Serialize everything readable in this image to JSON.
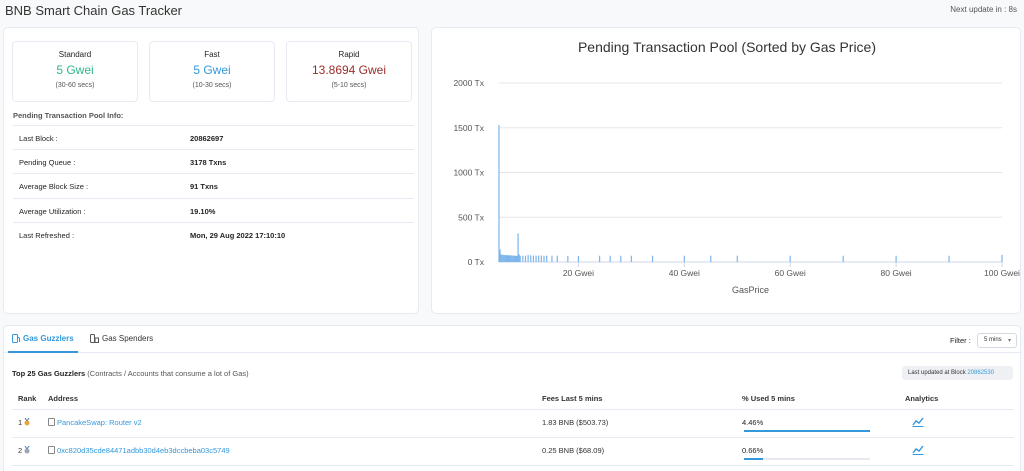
{
  "header": {
    "title": "BNB Smart Chain Gas Tracker",
    "next_update": "Next update in : 8s"
  },
  "gas": [
    {
      "label": "Standard",
      "value": "5 Gwei",
      "time": "(30-60 secs)"
    },
    {
      "label": "Fast",
      "value": "5 Gwei",
      "time": "(10-30 secs)"
    },
    {
      "label": "Rapid",
      "value": "13.8694 Gwei",
      "time": "(5-10 secs)"
    }
  ],
  "pool_info": {
    "heading": "Pending Transaction Pool Info:",
    "rows": [
      {
        "key": "Last Block :",
        "value": "20862697"
      },
      {
        "key": "Pending Queue :",
        "value": "3178 Txns"
      },
      {
        "key": "Average Block Size :",
        "value": "91 Txns"
      },
      {
        "key": "Average Utilization :",
        "value": "19.10%"
      },
      {
        "key": "Last Refreshed :",
        "value": "Mon, 29 Aug 2022 17:10:10"
      }
    ]
  },
  "chart_data": {
    "type": "bar",
    "title": "Pending Transaction Pool (Sorted by Gas Price)",
    "xlabel": "GasPrice",
    "ylabel": "",
    "xlim": [
      5,
      100
    ],
    "ylim": [
      0,
      2000
    ],
    "x_ticks": [
      "20 Gwei",
      "40 Gwei",
      "60 Gwei",
      "80 Gwei",
      "100 Gwei"
    ],
    "x_tick_values": [
      20,
      40,
      60,
      80,
      100
    ],
    "y_ticks": [
      "0 Tx",
      "500 Tx",
      "1000 Tx",
      "1500 Tx",
      "2000 Tx"
    ],
    "y_tick_values": [
      0,
      500,
      1000,
      1500,
      2000
    ],
    "grid": "horizontal",
    "color": "#7cb5ec",
    "points": [
      {
        "x": 5,
        "y": 1530
      },
      {
        "x": 5.2,
        "y": 140
      },
      {
        "x": 5.4,
        "y": 85
      },
      {
        "x": 5.6,
        "y": 80
      },
      {
        "x": 5.8,
        "y": 80
      },
      {
        "x": 6,
        "y": 78
      },
      {
        "x": 6.2,
        "y": 78
      },
      {
        "x": 6.4,
        "y": 76
      },
      {
        "x": 6.6,
        "y": 76
      },
      {
        "x": 6.8,
        "y": 75
      },
      {
        "x": 7,
        "y": 75
      },
      {
        "x": 7.2,
        "y": 74
      },
      {
        "x": 7.4,
        "y": 74
      },
      {
        "x": 7.6,
        "y": 72
      },
      {
        "x": 7.8,
        "y": 72
      },
      {
        "x": 8,
        "y": 70
      },
      {
        "x": 8.2,
        "y": 70
      },
      {
        "x": 8.4,
        "y": 68
      },
      {
        "x": 8.6,
        "y": 320
      },
      {
        "x": 8.8,
        "y": 85
      },
      {
        "x": 9,
        "y": 70
      },
      {
        "x": 9.5,
        "y": 70
      },
      {
        "x": 10,
        "y": 70
      },
      {
        "x": 10.5,
        "y": 80
      },
      {
        "x": 11,
        "y": 75
      },
      {
        "x": 11.5,
        "y": 70
      },
      {
        "x": 12,
        "y": 70
      },
      {
        "x": 12.5,
        "y": 72
      },
      {
        "x": 13,
        "y": 72
      },
      {
        "x": 13.5,
        "y": 70
      },
      {
        "x": 14,
        "y": 70
      },
      {
        "x": 15,
        "y": 70
      },
      {
        "x": 16,
        "y": 70
      },
      {
        "x": 18,
        "y": 68
      },
      {
        "x": 20,
        "y": 68
      },
      {
        "x": 24,
        "y": 70
      },
      {
        "x": 26,
        "y": 70
      },
      {
        "x": 28,
        "y": 70
      },
      {
        "x": 30,
        "y": 70
      },
      {
        "x": 34,
        "y": 70
      },
      {
        "x": 40,
        "y": 70
      },
      {
        "x": 45,
        "y": 70
      },
      {
        "x": 50,
        "y": 70
      },
      {
        "x": 60,
        "y": 70
      },
      {
        "x": 70,
        "y": 70
      },
      {
        "x": 80,
        "y": 70
      },
      {
        "x": 90,
        "y": 70
      },
      {
        "x": 100,
        "y": 80
      }
    ]
  },
  "tabs": {
    "guzzlers": "Gas Guzzlers",
    "spenders": "Gas Spenders",
    "filter_label": "Filter :",
    "filter_value": "5 mins"
  },
  "guzzlers": {
    "title_bold": "Top 25 Gas Guzzlers",
    "title_rest": " (Contracts / Accounts that consume a lot of Gas)",
    "last_updated_label": "Last updated at Block ",
    "last_updated_block": "20862530",
    "columns": [
      "Rank",
      "Address",
      "Fees Last 5 mins",
      "% Used 5 mins",
      "Analytics"
    ],
    "rows": [
      {
        "rank": "1",
        "address": "PancakeSwap: Router v2",
        "fees": "1.83 BNB ($503.73)",
        "pct": "4.46%",
        "pct_value": 4.46,
        "medal": "#e8a33c"
      },
      {
        "rank": "2",
        "address": "0xc820d35cde84471adbb30d4eb3dccbeba03c5749",
        "fees": "0.25 BNB ($68.09)",
        "pct": "0.66%",
        "pct_value": 0.66,
        "medal": "#9aa7b5"
      }
    ]
  }
}
